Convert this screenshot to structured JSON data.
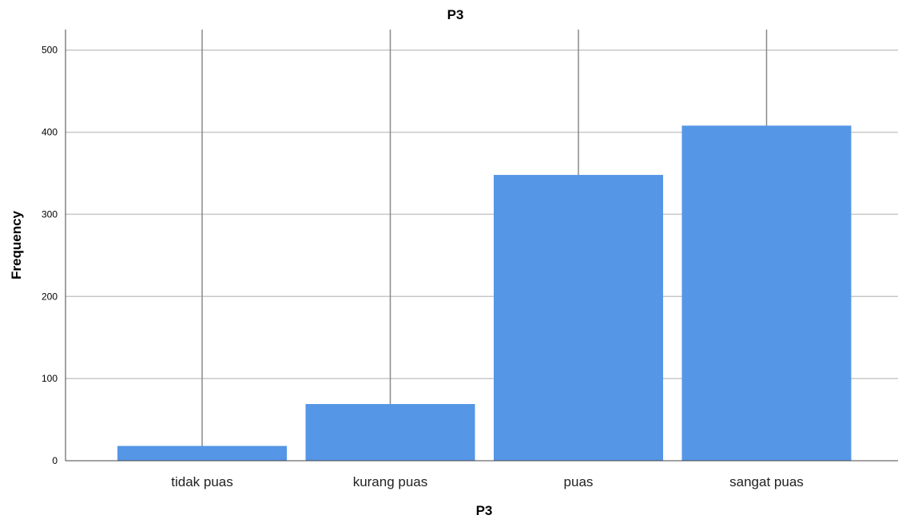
{
  "chart_data": {
    "type": "bar",
    "title": "P3",
    "xlabel": "P3",
    "ylabel": "Frequency",
    "categories": [
      "tidak puas",
      "kurang puas",
      "puas",
      "sangat puas"
    ],
    "values": [
      18,
      69,
      348,
      408
    ],
    "ylim": [
      0,
      525
    ],
    "yticks": [
      0,
      100,
      200,
      300,
      400,
      500
    ],
    "grid": true,
    "bar_color": "#5596E6",
    "legend": "none"
  }
}
